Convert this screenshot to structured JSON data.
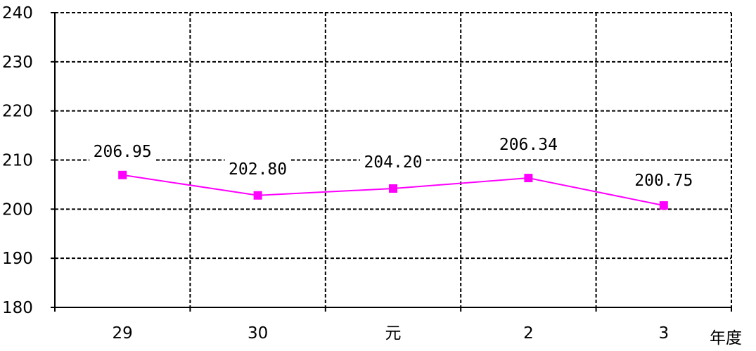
{
  "chart_data": {
    "type": "line",
    "categories": [
      "29",
      "30",
      "元",
      "2",
      "3"
    ],
    "series": [
      {
        "values": [
          206.95,
          202.8,
          204.2,
          206.34,
          200.75
        ],
        "labels": [
          "206.95",
          "202.80",
          "204.20",
          "206.34",
          "200.75"
        ],
        "color": "#ff00ff",
        "marker": "square"
      }
    ],
    "y_ticks": [
      "180",
      "190",
      "200",
      "210",
      "220",
      "230",
      "240"
    ],
    "ylim": [
      180,
      240
    ],
    "y_step": 10,
    "xlabel": "年度",
    "grid": true
  }
}
